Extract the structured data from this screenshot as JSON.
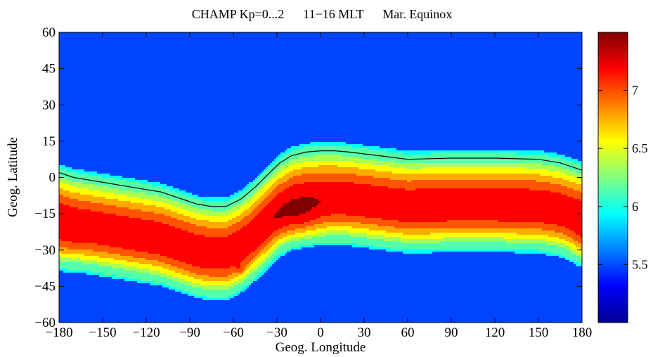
{
  "chart_data": {
    "type": "heatmap",
    "title": "CHAMP Kp=0...2      11−16 MLT      Mar. Equinox",
    "xlabel": "Geog. Longitude",
    "ylabel": "Geog. Latitude",
    "xlim": [
      -180,
      180
    ],
    "ylim": [
      -60,
      60
    ],
    "xticks": [
      -180,
      -150,
      -120,
      -90,
      -60,
      -30,
      0,
      30,
      60,
      90,
      120,
      150,
      180
    ],
    "xtick_labels": [
      "−180",
      "−150",
      "−120",
      "−90",
      "−60",
      "−30",
      "0",
      "30",
      "60",
      "90",
      "120",
      "150",
      "180"
    ],
    "yticks": [
      60,
      45,
      30,
      15,
      0,
      -15,
      -30,
      -45,
      -60
    ],
    "ytick_labels": [
      "60",
      "45",
      "30",
      "15",
      "0",
      "−15",
      "−30",
      "−45",
      "−60"
    ],
    "colorbar": {
      "range": [
        5.0,
        7.5
      ],
      "ticks": [
        5.5,
        6,
        6.5,
        7
      ],
      "tick_labels": [
        "5.5",
        "6",
        "6.5",
        "7"
      ],
      "colormap": "jet"
    },
    "contour_levels": [
      5.5,
      6.0,
      6.25,
      6.5,
      6.75,
      7.0,
      7.25
    ],
    "level_colors": [
      "#00ffff",
      "#55ffaa",
      "#aaff55",
      "#ffff00",
      "#ffaa00",
      "#ff5500",
      "#ff0000",
      "#800000"
    ],
    "max_blob_color": "#0044ff",
    "zero_line": {
      "label": "",
      "lon": [
        -180,
        -170,
        -150,
        -130,
        -110,
        -95,
        -85,
        -75,
        -65,
        -55,
        -45,
        -35,
        -28,
        -20,
        -10,
        0,
        10,
        20,
        40,
        60,
        90,
        120,
        150,
        165,
        180
      ],
      "lat": [
        2,
        0,
        -2,
        -4,
        -6,
        -9,
        -11,
        -12,
        -12,
        -9,
        -4,
        2,
        6,
        9,
        10.5,
        11,
        11,
        10.5,
        9,
        7.5,
        8,
        8,
        7.5,
        6,
        3
      ]
    }
  }
}
